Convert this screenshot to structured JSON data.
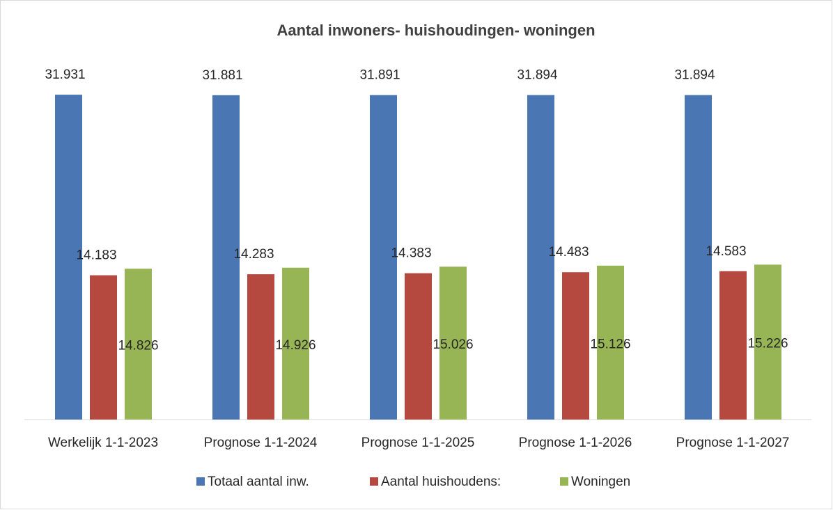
{
  "chart_data": {
    "type": "bar",
    "title": "Aantal inwoners- huishoudingen- woningen",
    "categories": [
      "Werkelijk 1-1-2023",
      "Prognose 1-1-2024",
      "Prognose 1-1-2025",
      "Prognose 1-1-2026",
      "Prognose 1-1-2027"
    ],
    "series": [
      {
        "name": "Totaal aantal inw.",
        "color": "#4a76b4",
        "values": [
          31931,
          31881,
          31891,
          31894,
          31894
        ],
        "value_labels": [
          "31.931",
          "31.881",
          "31.891",
          "31.894",
          "31.894"
        ]
      },
      {
        "name": "Aantal huishoudens:",
        "color": "#b5483f",
        "values": [
          14183,
          14283,
          14383,
          14483,
          14583
        ],
        "value_labels": [
          "14.183",
          "14.283",
          "14.383",
          "14.483",
          "14.583"
        ]
      },
      {
        "name": "Woningen",
        "color": "#97b554",
        "values": [
          14826,
          14926,
          15026,
          15126,
          15226
        ],
        "value_labels": [
          "14.826",
          "14.926",
          "15.026",
          "15.126",
          "15.226"
        ]
      }
    ],
    "ylim": [
      0,
      34400
    ],
    "legend": "bottom"
  }
}
